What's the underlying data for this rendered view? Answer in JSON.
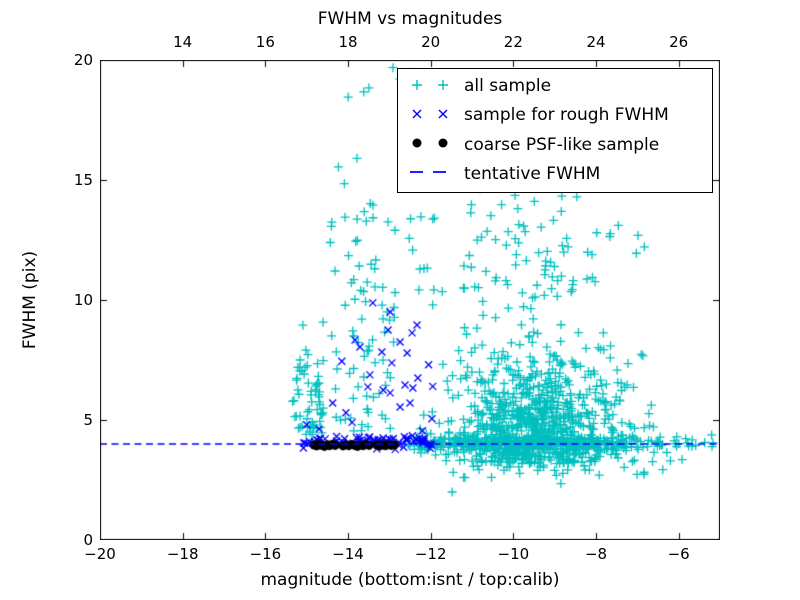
{
  "figure": {
    "title": "FWHM vs magnitudes",
    "xlabel": "magnitude (bottom:isnt / top:calib)",
    "ylabel": "FWHM (pix)",
    "background": "#ffffff",
    "axis_color": "#000000"
  },
  "legend": {
    "items": [
      {
        "label": "all sample",
        "marker": "plus",
        "color": "#00bfbf"
      },
      {
        "label": "sample for rough FWHM",
        "marker": "cross",
        "color": "#0000ff"
      },
      {
        "label": "coarse PSF-like sample",
        "marker": "dot",
        "color": "#000000"
      },
      {
        "label": "tentative FWHM",
        "marker": "dash",
        "color": "#0000ff"
      }
    ]
  },
  "chart_data": {
    "type": "scatter",
    "title": "FWHM vs magnitudes",
    "xlabel": "magnitude (bottom:isnt / top:calib)",
    "ylabel": "FWHM (pix)",
    "xlim_bottom": [
      -20,
      -5
    ],
    "xlim_top": [
      12,
      27
    ],
    "ylim": [
      0,
      20
    ],
    "grid": false,
    "legend_position": "upper right",
    "x_ticks_bottom": {
      "values": [
        -20,
        -18,
        -16,
        -14,
        -12,
        -10,
        -8,
        -6
      ],
      "labels": [
        "−20",
        "−18",
        "−16",
        "−14",
        "−12",
        "−10",
        "−8",
        "−6"
      ]
    },
    "x_ticks_top": {
      "values": [
        14,
        16,
        18,
        20,
        22,
        24,
        26
      ],
      "labels": [
        "14",
        "16",
        "18",
        "20",
        "22",
        "24",
        "26"
      ]
    },
    "y_ticks": {
      "values": [
        0,
        5,
        10,
        15,
        20
      ],
      "labels": [
        "0",
        "5",
        "10",
        "15",
        "20"
      ]
    },
    "tentative_fwhm": 4.0,
    "seed": 20140719,
    "series": [
      {
        "name": "all sample",
        "marker": "plus",
        "color": "#00bfbf",
        "clusters": [
          {
            "n": 65,
            "x": {
              "d": "u",
              "a": -15.35,
              "b": -14.55
            },
            "y": {
              "d": "hn",
              "base": 4.3,
              "sd": 2.0,
              "max": 10.4
            }
          },
          {
            "n": 85,
            "x": {
              "d": "u",
              "a": -14.45,
              "b": -12.85
            },
            "y": {
              "d": "hn",
              "base": 4.4,
              "sd": 5.5,
              "max": 19.9
            }
          },
          {
            "n": 110,
            "x": {
              "d": "n",
              "mean": -9.8,
              "sd": 1.6,
              "min": -13.2,
              "max": -6.3
            },
            "y": {
              "d": "hn",
              "base": 9.5,
              "sd": 3.6,
              "max": 19.8
            }
          },
          {
            "n": 620,
            "x": {
              "d": "n",
              "mean": -9.55,
              "sd": 1.15,
              "min": -12.3,
              "max": -6.35
            },
            "y": {
              "d": "hn",
              "base": 3.2,
              "sd": 2.3,
              "max": 9.6
            }
          },
          {
            "n": 220,
            "x": {
              "d": "n",
              "mean": -9.3,
              "sd": 0.8,
              "min": -11.5,
              "max": -6.8
            },
            "y": {
              "d": "n",
              "mean": 5.2,
              "sd": 1.5,
              "min": 2.9,
              "max": 9.4
            }
          },
          {
            "n": 380,
            "x": {
              "d": "n",
              "mean": -9.6,
              "sd": 1.7,
              "min": -12.6,
              "max": -5.05
            },
            "y": {
              "d": "n",
              "mean": 4.03,
              "sd": 0.13,
              "min": 3.62,
              "max": 4.45
            }
          },
          {
            "n": 55,
            "x": {
              "d": "n",
              "mean": -9.0,
              "sd": 1.4,
              "min": -11.9,
              "max": -5.9
            },
            "y": {
              "d": "u",
              "a": 2.6,
              "b": 3.75
            }
          },
          {
            "n": 8,
            "x": {
              "d": "u",
              "a": -14.3,
              "b": -8.6
            },
            "y": {
              "d": "u",
              "a": 19.0,
              "b": 19.9
            }
          },
          {
            "n": 22,
            "x": {
              "d": "u",
              "a": -7.5,
              "b": -5.1
            },
            "y": {
              "d": "n",
              "mean": 4.1,
              "sd": 0.45,
              "min": 3.2,
              "max": 5.2
            }
          }
        ],
        "points": [
          [
            -11.48,
            2.0
          ],
          [
            -11.17,
            2.6
          ],
          [
            -8.85,
            2.35
          ],
          [
            -6.2,
            3.3
          ]
        ]
      },
      {
        "name": "sample for rough FWHM",
        "marker": "cross",
        "color": "#0000ff",
        "clusters": [
          {
            "n": 75,
            "x": {
              "d": "u",
              "a": -15.2,
              "b": -11.95
            },
            "y": {
              "d": "n",
              "mean": 4.08,
              "sd": 0.14,
              "min": 3.75,
              "max": 4.5
            }
          }
        ],
        "points": [
          [
            -13.4,
            9.88
          ],
          [
            -12.98,
            9.5
          ],
          [
            -12.33,
            8.96
          ],
          [
            -13.03,
            8.75
          ],
          [
            -12.45,
            8.63
          ],
          [
            -13.71,
            8.04
          ],
          [
            -13.18,
            7.83
          ],
          [
            -12.74,
            8.25
          ],
          [
            -12.57,
            7.79
          ],
          [
            -12.31,
            6.75
          ],
          [
            -13.47,
            6.88
          ],
          [
            -13.52,
            6.38
          ],
          [
            -12.98,
            6.13
          ],
          [
            -12.62,
            6.46
          ],
          [
            -12.43,
            6.33
          ],
          [
            -12.74,
            5.54
          ],
          [
            -12.5,
            5.71
          ],
          [
            -14.37,
            5.71
          ],
          [
            -13.15,
            6.25
          ],
          [
            -12.94,
            7.38
          ],
          [
            -13.83,
            8.33
          ],
          [
            -14.15,
            7.45
          ],
          [
            -14.05,
            5.3
          ],
          [
            -14.7,
            4.62
          ],
          [
            -13.9,
            4.9
          ],
          [
            -12.2,
            4.55
          ],
          [
            -11.97,
            5.05
          ],
          [
            -12.05,
            7.3
          ],
          [
            -11.95,
            6.4
          ],
          [
            -15.0,
            4.8
          ]
        ]
      },
      {
        "name": "coarse PSF-like sample",
        "marker": "dot",
        "color": "#000000",
        "clusters": [],
        "points": [
          [
            -14.82,
            3.96
          ],
          [
            -14.76,
            3.92
          ],
          [
            -14.7,
            3.98
          ],
          [
            -14.63,
            3.94
          ],
          [
            -14.57,
            3.9
          ],
          [
            -14.5,
            3.97
          ],
          [
            -14.44,
            3.93
          ],
          [
            -14.37,
            3.99
          ],
          [
            -14.31,
            3.95
          ],
          [
            -14.12,
            3.92
          ],
          [
            -14.05,
            3.97
          ],
          [
            -13.98,
            3.93
          ],
          [
            -13.91,
            3.98
          ],
          [
            -13.84,
            3.94
          ],
          [
            -13.77,
            3.9
          ],
          [
            -13.7,
            3.96
          ],
          [
            -13.63,
            3.93
          ],
          [
            -13.56,
            3.98
          ],
          [
            -13.49,
            3.94
          ],
          [
            -13.3,
            3.96
          ],
          [
            -13.23,
            3.92
          ],
          [
            -13.16,
            3.97
          ],
          [
            -13.09,
            3.93
          ],
          [
            -13.02,
            3.97
          ],
          [
            -12.95,
            3.94
          ],
          [
            -12.88,
            3.96
          ]
        ]
      },
      {
        "name": "tentative FWHM",
        "type": "hline",
        "y": 4.0,
        "color": "#0000ff",
        "dash": [
          7,
          4.5
        ],
        "linewidth": 1.4
      }
    ]
  }
}
